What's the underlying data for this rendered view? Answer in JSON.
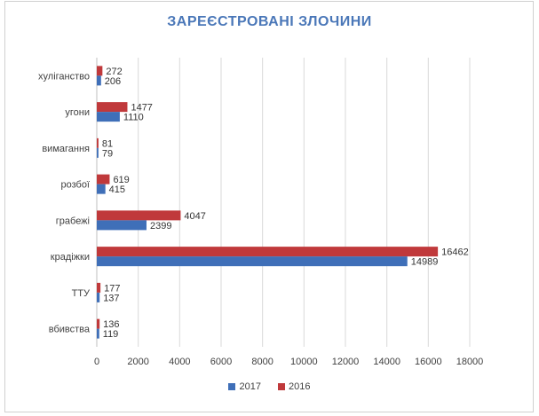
{
  "chart_data": {
    "type": "bar",
    "orientation": "horizontal",
    "title": "ЗАРЕЄСТРОВАНІ ЗЛОЧИНИ",
    "categories": [
      "хуліганство",
      "угони",
      "вимагання",
      "розбої",
      "грабежі",
      "крадіжки",
      "ТТУ",
      "вбивства"
    ],
    "series": [
      {
        "name": "2016",
        "color": "#c0393b",
        "values": [
          272,
          1477,
          81,
          619,
          4047,
          16462,
          177,
          136
        ]
      },
      {
        "name": "2017",
        "color": "#3f6fb8",
        "values": [
          206,
          1110,
          79,
          415,
          2399,
          14989,
          137,
          119
        ]
      }
    ],
    "xlim": [
      0,
      18000
    ],
    "xticks": [
      0,
      2000,
      4000,
      6000,
      8000,
      10000,
      12000,
      14000,
      16000,
      18000
    ],
    "grid": true,
    "legend": {
      "placement": "bottom",
      "order": [
        "2017",
        "2016"
      ]
    }
  }
}
